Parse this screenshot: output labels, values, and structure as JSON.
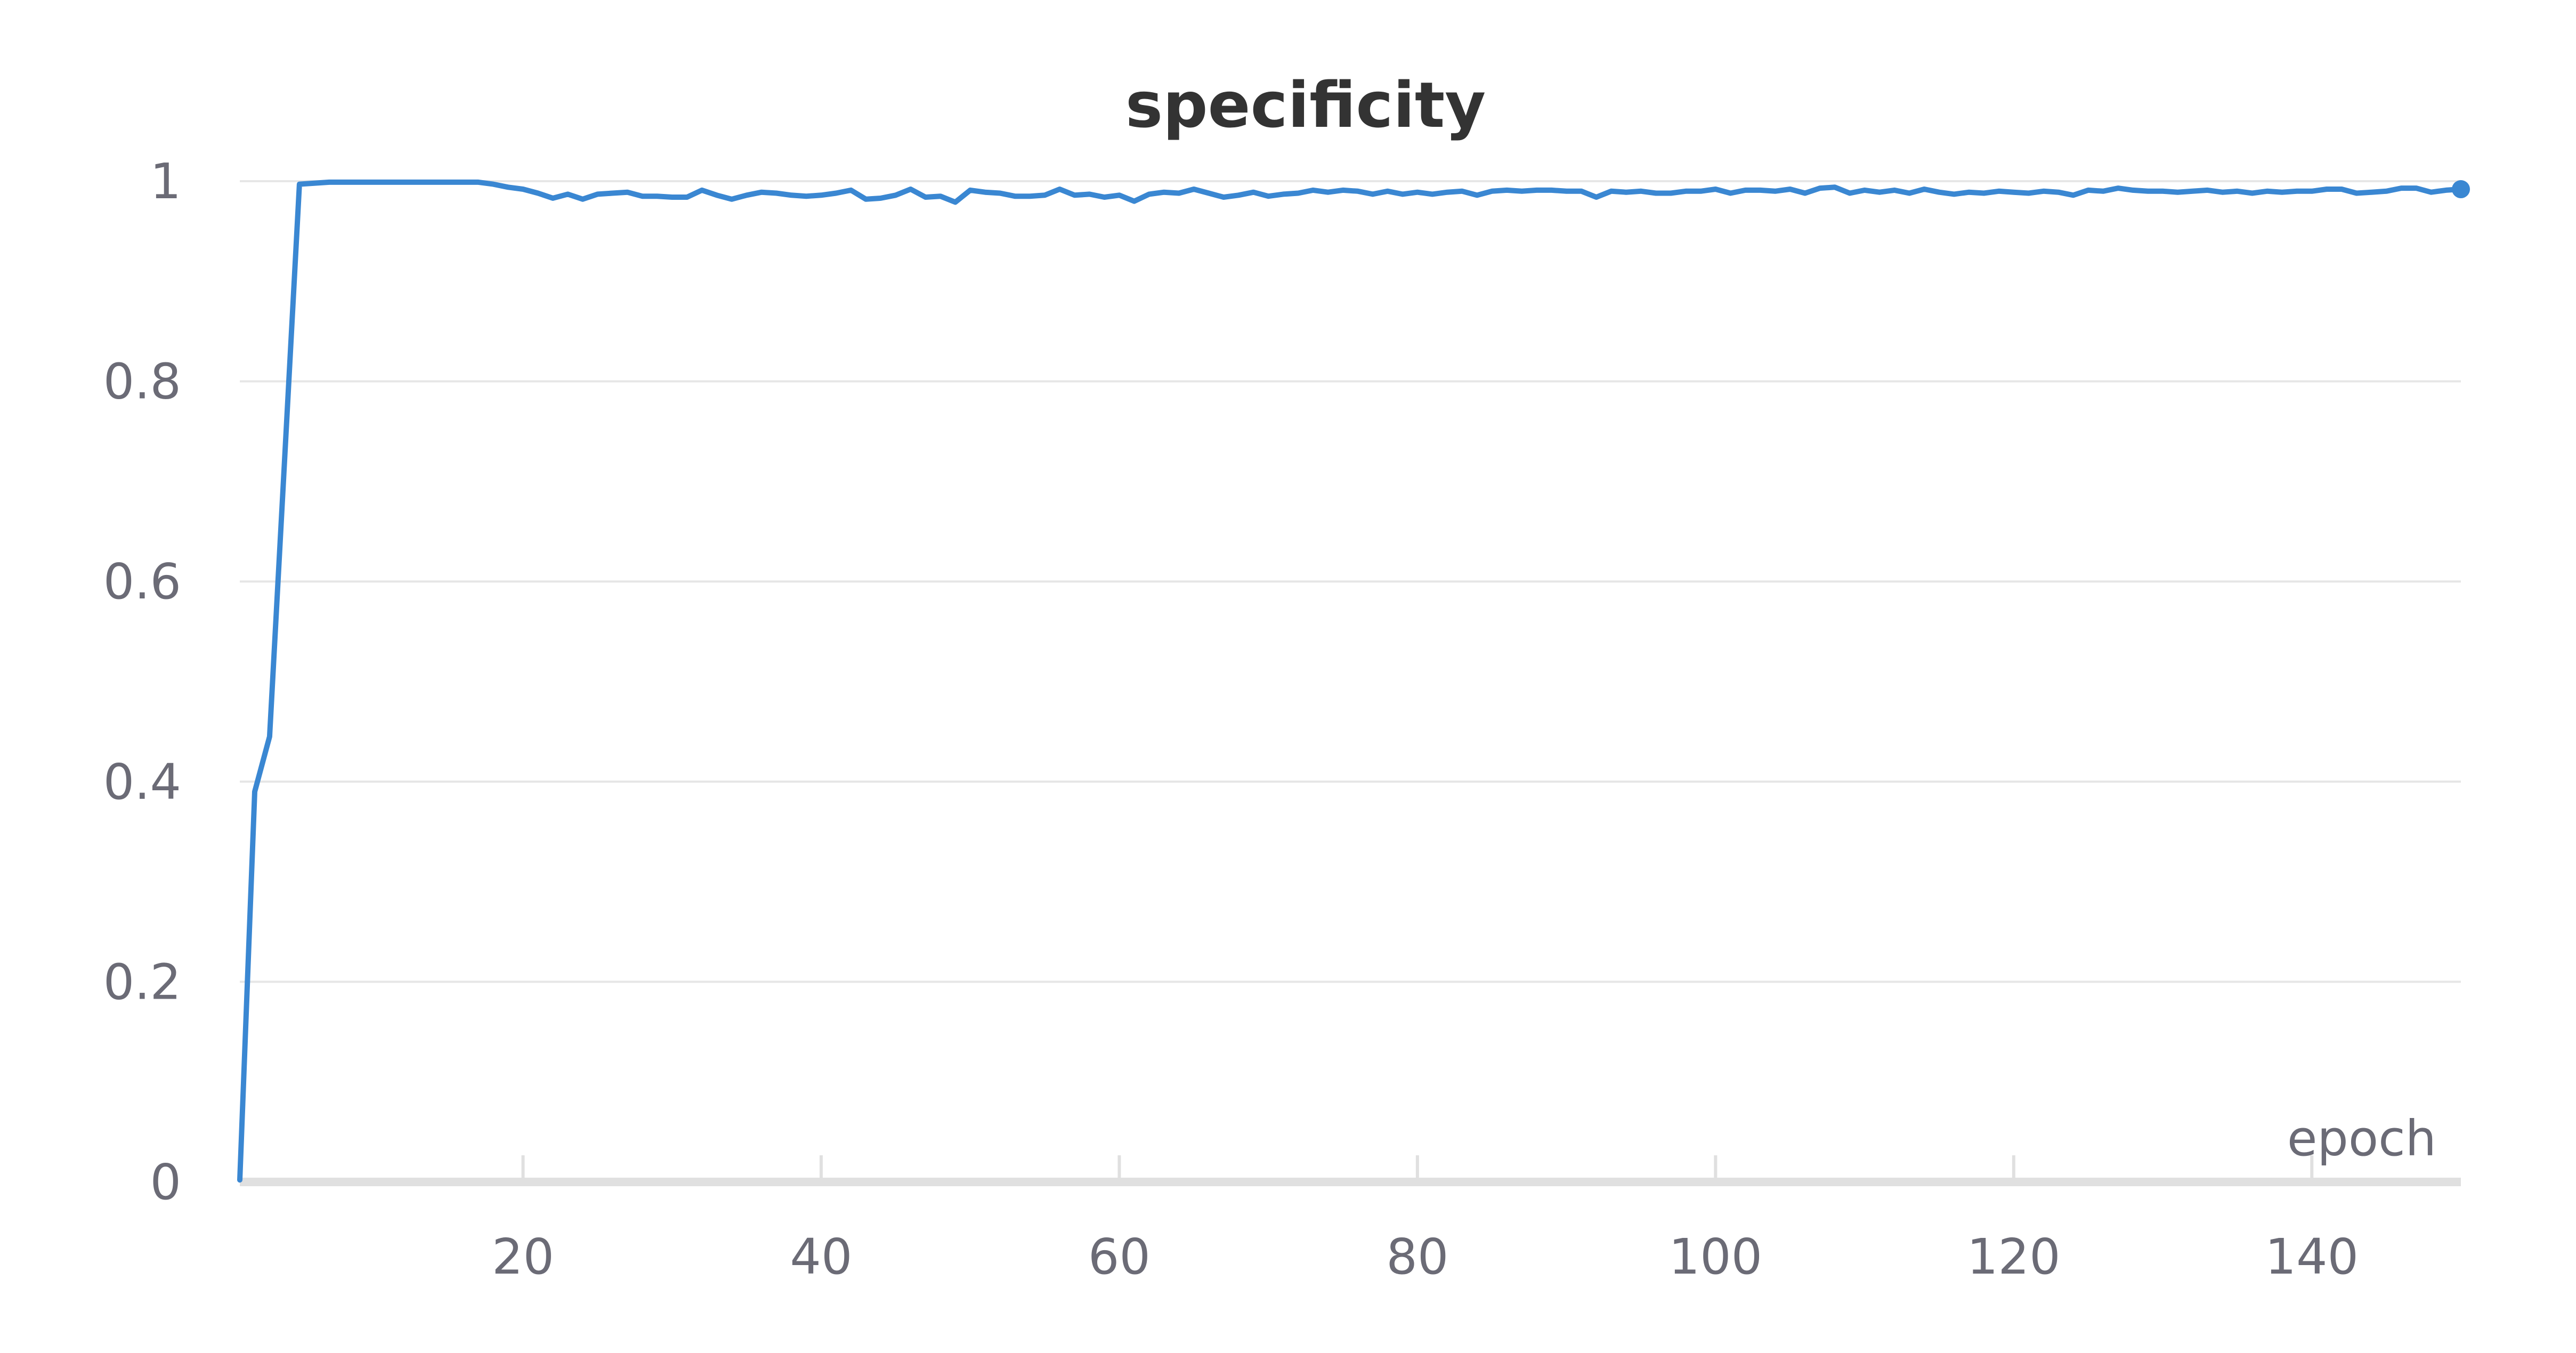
{
  "chart_data": {
    "type": "line",
    "title": "specificity",
    "xlabel": "epoch",
    "ylabel": "",
    "xlim": [
      1,
      150
    ],
    "ylim": [
      0,
      1
    ],
    "x_ticks": [
      20,
      40,
      60,
      80,
      100,
      120,
      140
    ],
    "x_tick_labels": [
      "20",
      "40",
      "60",
      "80",
      "100",
      "120",
      "140"
    ],
    "y_ticks": [
      0,
      0.2,
      0.4,
      0.6,
      0.8,
      1
    ],
    "y_tick_labels": [
      "0",
      "0.2",
      "0.4",
      "0.6",
      "0.8",
      "1"
    ],
    "grid": true,
    "legend": "none",
    "color": "#3a87d2",
    "series": [
      {
        "x": [
          1,
          2,
          3,
          4,
          5,
          6,
          7,
          8,
          9,
          10,
          11,
          12,
          13,
          14,
          15,
          16,
          17,
          18,
          19,
          20,
          21,
          22,
          23,
          24,
          25,
          26,
          27,
          28,
          29,
          30,
          31,
          32,
          33,
          34,
          35,
          36,
          37,
          38,
          39,
          40,
          41,
          42,
          43,
          44,
          45,
          46,
          47,
          48,
          49,
          50,
          51,
          52,
          53,
          54,
          55,
          56,
          57,
          58,
          59,
          60,
          61,
          62,
          63,
          64,
          65,
          66,
          67,
          68,
          69,
          70,
          71,
          72,
          73,
          74,
          75,
          76,
          77,
          78,
          79,
          80,
          81,
          82,
          83,
          84,
          85,
          86,
          87,
          88,
          89,
          90,
          91,
          92,
          93,
          94,
          95,
          96,
          97,
          98,
          99,
          100,
          101,
          102,
          103,
          104,
          105,
          106,
          107,
          108,
          109,
          110,
          111,
          112,
          113,
          114,
          115,
          116,
          117,
          118,
          119,
          120,
          121,
          122,
          123,
          124,
          125,
          126,
          127,
          128,
          129,
          130,
          131,
          132,
          133,
          134,
          135,
          136,
          137,
          138,
          139,
          140,
          141,
          142,
          143,
          144,
          145,
          146,
          147,
          148,
          149,
          150
        ],
        "y": [
          0.002,
          0.39,
          0.445,
          0.72,
          0.997,
          0.998,
          0.999,
          0.999,
          0.999,
          0.999,
          0.999,
          0.999,
          0.999,
          0.999,
          0.999,
          0.999,
          0.999,
          0.997,
          0.994,
          0.992,
          0.988,
          0.983,
          0.987,
          0.982,
          0.987,
          0.988,
          0.989,
          0.985,
          0.985,
          0.984,
          0.984,
          0.991,
          0.986,
          0.982,
          0.986,
          0.989,
          0.988,
          0.986,
          0.985,
          0.986,
          0.988,
          0.991,
          0.982,
          0.983,
          0.986,
          0.992,
          0.984,
          0.985,
          0.979,
          0.991,
          0.989,
          0.988,
          0.985,
          0.985,
          0.986,
          0.992,
          0.986,
          0.987,
          0.984,
          0.986,
          0.98,
          0.987,
          0.989,
          0.988,
          0.992,
          0.988,
          0.984,
          0.986,
          0.989,
          0.985,
          0.987,
          0.988,
          0.991,
          0.989,
          0.991,
          0.99,
          0.987,
          0.99,
          0.987,
          0.989,
          0.987,
          0.989,
          0.99,
          0.986,
          0.99,
          0.991,
          0.99,
          0.991,
          0.991,
          0.99,
          0.99,
          0.984,
          0.99,
          0.989,
          0.99,
          0.988,
          0.988,
          0.99,
          0.99,
          0.992,
          0.988,
          0.991,
          0.991,
          0.99,
          0.992,
          0.988,
          0.993,
          0.994,
          0.988,
          0.991,
          0.989,
          0.991,
          0.988,
          0.992,
          0.989,
          0.987,
          0.989,
          0.988,
          0.99,
          0.989,
          0.988,
          0.99,
          0.989,
          0.986,
          0.991,
          0.99,
          0.993,
          0.991,
          0.99,
          0.99,
          0.989,
          0.99,
          0.991,
          0.989,
          0.99,
          0.988,
          0.99,
          0.989,
          0.99,
          0.99,
          0.992,
          0.992,
          0.988,
          0.989,
          0.99,
          0.993,
          0.993,
          0.989,
          0.991,
          0.992
        ]
      }
    ]
  }
}
